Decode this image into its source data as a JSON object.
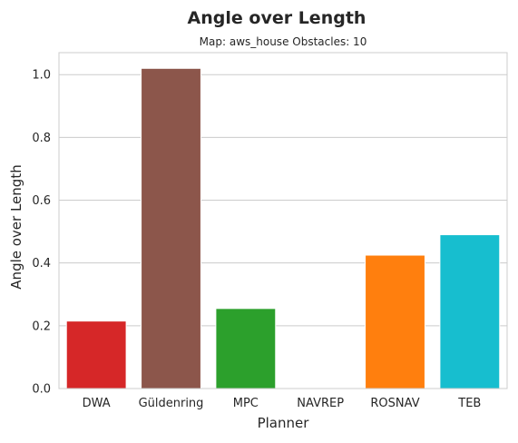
{
  "chart_data": {
    "type": "bar",
    "title": "Angle over Length",
    "subtitle": "Map: aws_house Obstacles: 10",
    "xlabel": "Planner",
    "ylabel": "Angle over Length",
    "categories": [
      "DWA",
      "Güldenring",
      "MPC",
      "NAVREP",
      "ROSNAV",
      "TEB"
    ],
    "values": [
      0.215,
      1.02,
      0.255,
      0.0,
      0.425,
      0.49
    ],
    "colors": [
      "#d62728",
      "#8c564b",
      "#2ca02c",
      "#ffffff",
      "#ff7f0e",
      "#17becf"
    ],
    "ylim": [
      0,
      1.07
    ],
    "yticks": [
      0.0,
      0.2,
      0.4,
      0.6,
      0.8,
      1.0
    ],
    "ytick_labels": [
      "0.0",
      "0.2",
      "0.4",
      "0.6",
      "0.8",
      "1.0"
    ],
    "grid": true,
    "legend": "none"
  }
}
